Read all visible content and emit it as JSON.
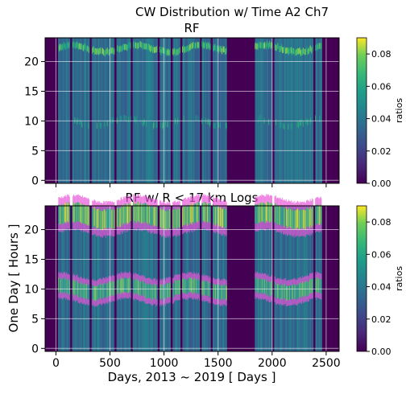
{
  "figure": {
    "suptitle": "CW Distribution w/ Time A2 Ch7"
  },
  "chart_data": [
    {
      "type": "heatmap",
      "title": "RF",
      "xlabel": "",
      "ylabel": "",
      "xlim": [
        -100,
        2620
      ],
      "ylim": [
        -0.5,
        24
      ],
      "xticks": [
        0,
        500,
        1000,
        1500,
        2000,
        2500
      ],
      "yticks": [
        0,
        5,
        10,
        15,
        20
      ],
      "grid": true,
      "colorbar": {
        "label": "ratios",
        "range": [
          0.0,
          0.09
        ],
        "ticks": [
          0.0,
          0.02,
          0.04,
          0.06,
          0.08
        ],
        "tick_labels": [
          "0.00",
          "0.02",
          "0.04",
          "0.06",
          "0.08"
        ]
      },
      "colormap": [
        "#440154",
        "#31688e",
        "#35b779",
        "#fde725"
      ],
      "gaps_days": [
        [
          -70,
          20
        ],
        [
          130,
          150
        ],
        [
          310,
          330
        ],
        [
          540,
          560
        ],
        [
          690,
          710
        ],
        [
          940,
          955
        ],
        [
          1060,
          1075
        ],
        [
          1150,
          1165
        ],
        [
          1330,
          1345
        ],
        [
          1430,
          1445
        ],
        [
          1580,
          1840
        ],
        [
          2000,
          2015
        ],
        [
          2380,
          2395
        ],
        [
          2455,
          2620
        ]
      ],
      "peak_bands": [
        {
          "hour_center": 22.2,
          "value": 0.085
        },
        {
          "hour_center": 9.8,
          "value": 0.07
        }
      ],
      "background_value": 0.035
    },
    {
      "type": "heatmap",
      "title": "RF w/ R < 17 km Logs",
      "xlabel": "Days, 2013 ~ 2019 [ Days ]",
      "ylabel": "One Day [ Hours ]",
      "xlim": [
        -100,
        2620
      ],
      "ylim": [
        -0.5,
        24
      ],
      "xticks": [
        0,
        500,
        1000,
        1500,
        2000,
        2500
      ],
      "yticks": [
        0,
        5,
        10,
        15,
        20
      ],
      "grid": true,
      "colorbar": {
        "label": "ratios",
        "range": [
          0.0,
          0.09
        ],
        "ticks": [
          0.0,
          0.02,
          0.04,
          0.06,
          0.08
        ],
        "tick_labels": [
          "0.00",
          "0.02",
          "0.04",
          "0.06",
          "0.08"
        ]
      },
      "colormap": [
        "#440154",
        "#31688e",
        "#35b779",
        "#fde725"
      ],
      "overlay_color": "#e855d8",
      "gaps_days": [
        [
          -70,
          20
        ],
        [
          130,
          150
        ],
        [
          310,
          330
        ],
        [
          540,
          560
        ],
        [
          690,
          710
        ],
        [
          940,
          955
        ],
        [
          1060,
          1075
        ],
        [
          1150,
          1165
        ],
        [
          1330,
          1345
        ],
        [
          1430,
          1445
        ],
        [
          1580,
          1840
        ],
        [
          2000,
          2015
        ],
        [
          2380,
          2395
        ],
        [
          2455,
          2620
        ]
      ],
      "peak_bands": [
        {
          "hour_center": 22.3,
          "value": 0.09
        },
        {
          "hour_center": 10.0,
          "value": 0.08
        }
      ],
      "background_value": 0.035
    }
  ]
}
